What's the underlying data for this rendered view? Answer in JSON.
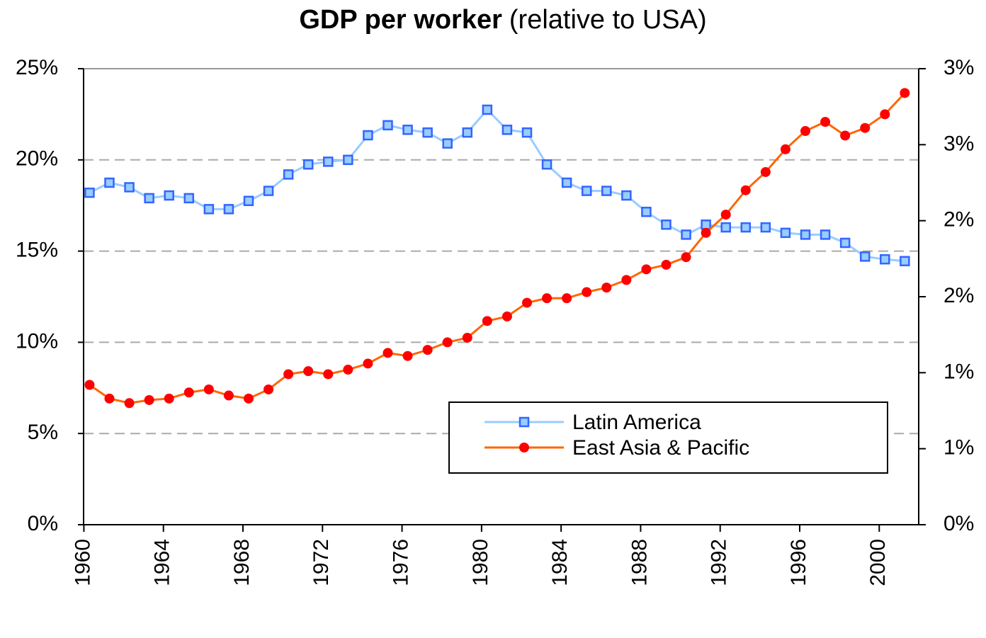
{
  "chart_data": {
    "type": "line",
    "title": "GDP per worker",
    "subtitle": "(relative to USA)",
    "x": [
      1960,
      1961,
      1962,
      1963,
      1964,
      1965,
      1966,
      1967,
      1968,
      1969,
      1970,
      1971,
      1972,
      1973,
      1974,
      1975,
      1976,
      1977,
      1978,
      1979,
      1980,
      1981,
      1982,
      1983,
      1984,
      1985,
      1986,
      1987,
      1988,
      1989,
      1990,
      1991,
      1992,
      1993,
      1994,
      1995,
      1996,
      1997,
      1998,
      1999,
      2000,
      2001
    ],
    "series": [
      {
        "name": "Latin America",
        "color": "#99ccff",
        "marker_color": "#3366ff",
        "marker": "square",
        "values": [
          18.2,
          18.75,
          18.5,
          17.9,
          18.05,
          17.9,
          17.3,
          17.3,
          17.75,
          18.3,
          19.2,
          19.75,
          19.9,
          20.0,
          21.35,
          21.9,
          21.65,
          21.5,
          20.9,
          21.5,
          22.75,
          21.65,
          21.5,
          19.75,
          18.75,
          18.3,
          18.3,
          18.05,
          17.15,
          16.45,
          15.9,
          16.45,
          16.3,
          16.3,
          16.3,
          16.0,
          15.9,
          15.9,
          15.45,
          14.7,
          14.55,
          14.45
        ]
      },
      {
        "name": "East Asia & Pacific",
        "color": "#ff6600",
        "marker_color": "#ff0000",
        "marker": "circle",
        "axis": "y2",
        "values": [
          0.92,
          0.83,
          0.8,
          0.82,
          0.83,
          0.87,
          0.89,
          0.85,
          0.83,
          0.89,
          0.99,
          1.01,
          0.99,
          1.02,
          1.06,
          1.13,
          1.11,
          1.15,
          1.2,
          1.23,
          1.34,
          1.37,
          1.46,
          1.49,
          1.49,
          1.53,
          1.56,
          1.61,
          1.68,
          1.71,
          1.76,
          1.92,
          2.04,
          2.2,
          2.32,
          2.47,
          2.59,
          2.65,
          2.56,
          2.61,
          2.7,
          2.84
        ]
      }
    ],
    "xlim": [
      1959.7,
      2001.7
    ],
    "xticks": [
      1960,
      1964,
      1968,
      1972,
      1976,
      1980,
      1984,
      1988,
      1992,
      1996,
      2000
    ],
    "ylim": [
      0,
      25
    ],
    "yticks": [
      {
        "value": 0,
        "label": "0%"
      },
      {
        "value": 5,
        "label": "5%"
      },
      {
        "value": 10,
        "label": "10%"
      },
      {
        "value": 15,
        "label": "15%"
      },
      {
        "value": 20,
        "label": "20%"
      },
      {
        "value": 25,
        "label": "25%"
      }
    ],
    "y2lim": [
      0,
      3
    ],
    "y2ticks": [
      {
        "value": 0,
        "label": "0%"
      },
      {
        "value": 0.5,
        "label": "1%"
      },
      {
        "value": 1,
        "label": "1%"
      },
      {
        "value": 1.5,
        "label": "2%"
      },
      {
        "value": 2,
        "label": "2%"
      },
      {
        "value": 2.5,
        "label": "3%"
      },
      {
        "value": 3,
        "label": "3%"
      }
    ],
    "grid": true,
    "legend": "lower right"
  }
}
